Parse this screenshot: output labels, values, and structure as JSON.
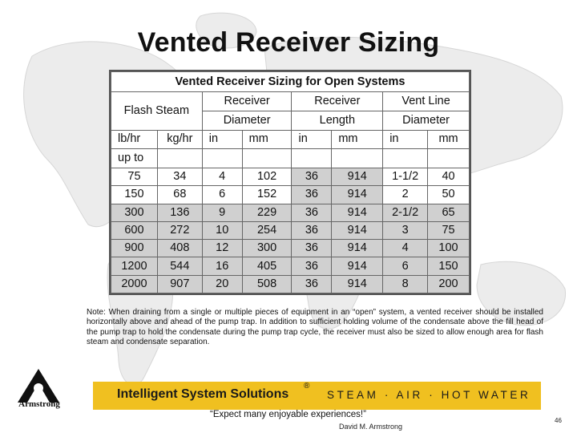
{
  "slide": {
    "title": "Vented Receiver Sizing",
    "note": "Note: When draining from a single or multiple pieces of equipment in an “open” system, a vented receiver should be installed horizontally above and ahead of the pump trap. In addition to sufficient holding volume of the condensate above the fill head of the pump trap to hold the condensate during the pump trap cycle, the receiver must also be sized to allow enough area for flash steam and condensate separation.",
    "page_number": "46"
  },
  "table": {
    "caption": "Vented Receiver Sizing for Open Systems",
    "group_headers": {
      "flash_steam": "Flash Steam",
      "receiver_diameter_1": "Receiver",
      "receiver_diameter_2": "Diameter",
      "receiver_length_1": "Receiver",
      "receiver_length_2": "Length",
      "vent_line_1": "Vent Line",
      "vent_line_2": "Diameter"
    },
    "units": [
      "lb/hr",
      "kg/hr",
      "in",
      "mm",
      "in",
      "mm",
      "in",
      "mm"
    ],
    "upto_label": "up to",
    "rows": [
      {
        "cells": [
          "75",
          "34",
          "4",
          "102",
          "36",
          "914",
          "1-1/2",
          "40"
        ],
        "shaded": false
      },
      {
        "cells": [
          "150",
          "68",
          "6",
          "152",
          "36",
          "914",
          "2",
          "50"
        ],
        "shaded": false
      },
      {
        "cells": [
          "300",
          "136",
          "9",
          "229",
          "36",
          "914",
          "2-1/2",
          "65"
        ],
        "shaded": true
      },
      {
        "cells": [
          "600",
          "272",
          "10",
          "254",
          "36",
          "914",
          "3",
          "75"
        ],
        "shaded": true
      },
      {
        "cells": [
          "900",
          "408",
          "12",
          "300",
          "36",
          "914",
          "4",
          "100"
        ],
        "shaded": true
      },
      {
        "cells": [
          "1200",
          "544",
          "16",
          "405",
          "36",
          "914",
          "6",
          "150"
        ],
        "shaded": true
      },
      {
        "cells": [
          "2000",
          "907",
          "20",
          "508",
          "36",
          "914",
          "8",
          "200"
        ],
        "shaded": true
      }
    ]
  },
  "footer": {
    "logo_text": "Armstrong",
    "banner_name": "Intelligent System Solutions",
    "registered": "®",
    "banner_tagline": "STEAM · AIR · HOT WATER",
    "quote": "“Expect many enjoyable experiences!”",
    "author": "David M. Armstrong",
    "banner_color": "#f0c020"
  }
}
